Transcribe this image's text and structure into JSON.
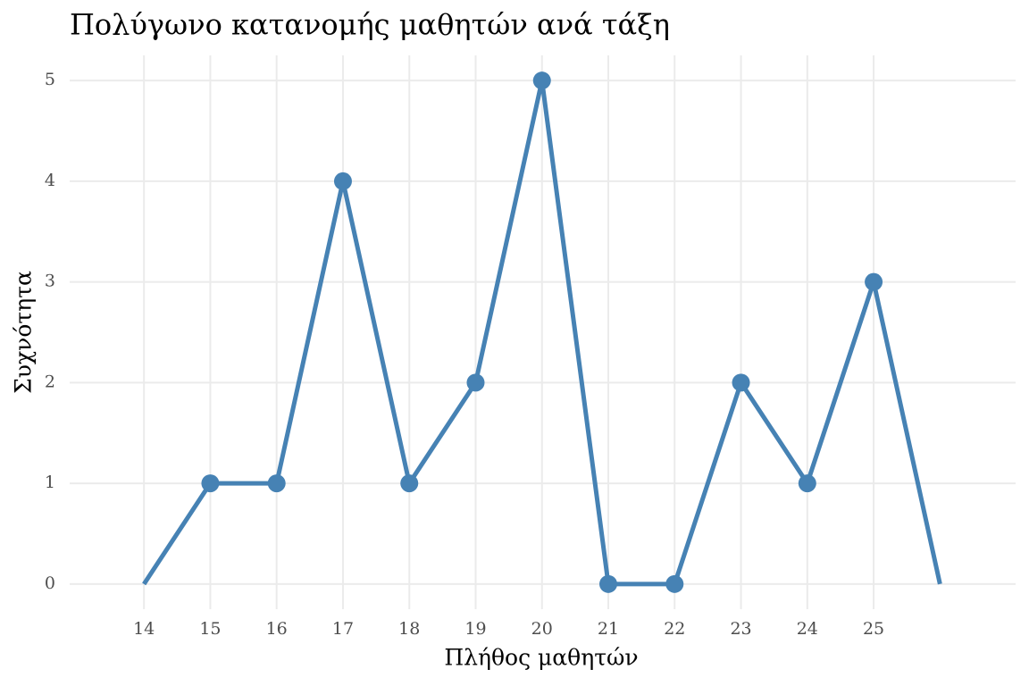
{
  "chart_data": {
    "type": "line",
    "title": "Πολύγωνο κατανομής μαθητών ανά τάξη",
    "x_label": "Πλήθος μαθητών",
    "y_label": "Συχνότητα",
    "x": [
      14,
      15,
      16,
      17,
      18,
      19,
      20,
      21,
      22,
      23,
      24,
      25,
      26
    ],
    "series": [
      {
        "color": "#4682b4",
        "values": [
          0,
          1,
          1,
          4,
          1,
          2,
          5,
          0,
          0,
          2,
          1,
          3,
          0
        ]
      }
    ],
    "endpoint_markers": false,
    "xlim": [
      12.88,
      27.14
    ],
    "xticks": [
      14,
      15,
      16,
      17,
      18,
      19,
      20,
      21,
      22,
      23,
      24,
      25
    ],
    "ylim": [
      -0.25,
      5.25
    ],
    "yticks": [
      0,
      1,
      2,
      3,
      4,
      5
    ],
    "grid": true
  }
}
